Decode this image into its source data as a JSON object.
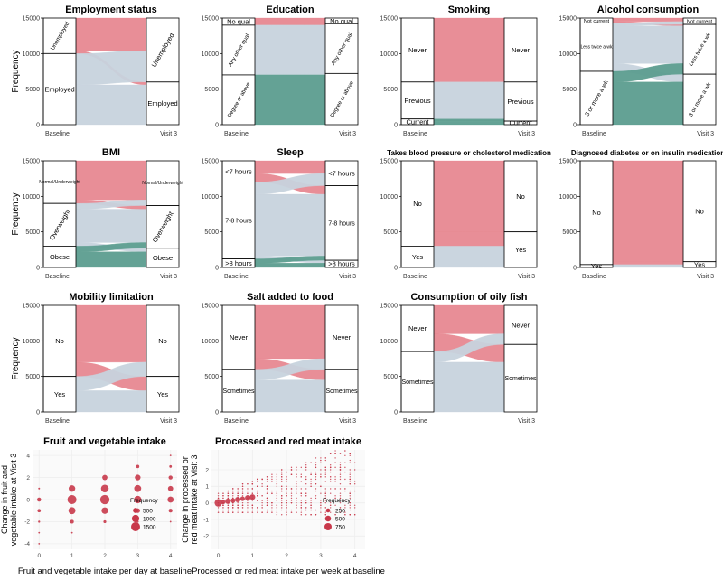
{
  "colors": {
    "red": "#e78891",
    "blue": "#c7d3dd",
    "green": "#5c9d8f",
    "axis": "#000000",
    "point": "#c8384a",
    "grid": "#eeeeee"
  },
  "alluvial": [
    {
      "id": "employment",
      "title": "Employment status",
      "ylabel": "Frequency",
      "xlabels": [
        "Baseline",
        "Visit 3"
      ],
      "ymax": 15000,
      "ticks": [
        0,
        5000,
        10000,
        15000
      ],
      "left": [
        {
          "label": "Unemployed",
          "value": 5000,
          "color": "red"
        },
        {
          "label": "Employed",
          "value": 10000,
          "color": "blue"
        }
      ],
      "right": [
        {
          "label": "Unemployed",
          "value": 9000
        },
        {
          "label": "Employed",
          "value": 6000
        }
      ],
      "flows": [
        {
          "from": 0,
          "to": 0,
          "value": 4600,
          "color": "red"
        },
        {
          "from": 0,
          "to": 1,
          "value": 400,
          "color": "red"
        },
        {
          "from": 1,
          "to": 0,
          "value": 4400,
          "color": "blue"
        },
        {
          "from": 1,
          "to": 1,
          "value": 5600,
          "color": "blue"
        }
      ]
    },
    {
      "id": "education",
      "title": "Education",
      "ylabel": "",
      "xlabels": [
        "Baseline",
        "Visit 3"
      ],
      "ymax": 15000,
      "ticks": [
        0,
        5000,
        10000,
        15000
      ],
      "left": [
        {
          "label": "No qual",
          "value": 1000,
          "color": "red"
        },
        {
          "label": "Any other qual",
          "value": 7000,
          "color": "blue"
        },
        {
          "label": "Degree or above",
          "value": 7000,
          "color": "green"
        }
      ],
      "right": [
        {
          "label": "No qual",
          "value": 800
        },
        {
          "label": "Any other qual",
          "value": 7000
        },
        {
          "label": "Degree or above",
          "value": 7200
        }
      ],
      "flows": [
        {
          "from": 0,
          "to": 0,
          "value": 800,
          "color": "red"
        },
        {
          "from": 0,
          "to": 1,
          "value": 200,
          "color": "red"
        },
        {
          "from": 1,
          "to": 1,
          "value": 6800,
          "color": "blue"
        },
        {
          "from": 1,
          "to": 2,
          "value": 200,
          "color": "blue"
        },
        {
          "from": 2,
          "to": 2,
          "value": 7000,
          "color": "green"
        }
      ]
    },
    {
      "id": "smoking",
      "title": "Smoking",
      "ylabel": "",
      "xlabels": [
        "Baseline",
        "Visit 3"
      ],
      "ymax": 15000,
      "ticks": [
        0,
        5000,
        10000,
        15000
      ],
      "left": [
        {
          "label": "Never",
          "value": 9000,
          "color": "red"
        },
        {
          "label": "Previous",
          "value": 5200,
          "color": "blue"
        },
        {
          "label": "Current",
          "value": 800,
          "color": "green"
        }
      ],
      "right": [
        {
          "label": "Never",
          "value": 9000
        },
        {
          "label": "Previous",
          "value": 5500
        },
        {
          "label": "Current",
          "value": 500
        }
      ],
      "flows": [
        {
          "from": 0,
          "to": 0,
          "value": 9000,
          "color": "red"
        },
        {
          "from": 1,
          "to": 1,
          "value": 5200,
          "color": "blue"
        },
        {
          "from": 2,
          "to": 1,
          "value": 300,
          "color": "green"
        },
        {
          "from": 2,
          "to": 2,
          "value": 500,
          "color": "green"
        }
      ]
    },
    {
      "id": "alcohol",
      "title": "Alcohol consumption",
      "ylabel": "",
      "xlabels": [
        "Baseline",
        "Visit 3"
      ],
      "ymax": 15000,
      "ticks": [
        0,
        5000,
        10000,
        15000
      ],
      "left": [
        {
          "label": "Not current",
          "value": 700,
          "color": "red"
        },
        {
          "label": "Less twice a wk",
          "value": 6800,
          "color": "blue"
        },
        {
          "label": "3 or more a wk",
          "value": 7500,
          "color": "green"
        }
      ],
      "right": [
        {
          "label": "Not current",
          "value": 900
        },
        {
          "label": "Less twice a wk",
          "value": 7000
        },
        {
          "label": "3 or more a wk",
          "value": 7100
        }
      ],
      "flows": [
        {
          "from": 0,
          "to": 0,
          "value": 500,
          "color": "red"
        },
        {
          "from": 0,
          "to": 1,
          "value": 200,
          "color": "red"
        },
        {
          "from": 1,
          "to": 0,
          "value": 400,
          "color": "blue"
        },
        {
          "from": 1,
          "to": 1,
          "value": 5300,
          "color": "blue"
        },
        {
          "from": 1,
          "to": 2,
          "value": 1100,
          "color": "blue"
        },
        {
          "from": 2,
          "to": 1,
          "value": 1500,
          "color": "green"
        },
        {
          "from": 2,
          "to": 2,
          "value": 6000,
          "color": "green"
        }
      ]
    },
    {
      "id": "bmi",
      "title": "BMI",
      "ylabel": "Frequency",
      "xlabels": [
        "Baseline",
        "Visit 3"
      ],
      "ymax": 15000,
      "ticks": [
        0,
        5000,
        10000,
        15000
      ],
      "left": [
        {
          "label": "Normal/Underweight",
          "value": 6000,
          "color": "red"
        },
        {
          "label": "Overweight",
          "value": 6000,
          "color": "blue"
        },
        {
          "label": "Obese",
          "value": 3000,
          "color": "green"
        }
      ],
      "right": [
        {
          "label": "Normal/Underweight",
          "value": 6300
        },
        {
          "label": "Overweight",
          "value": 6000
        },
        {
          "label": "Obese",
          "value": 2700
        }
      ],
      "flows": [
        {
          "from": 0,
          "to": 0,
          "value": 5500,
          "color": "red"
        },
        {
          "from": 0,
          "to": 1,
          "value": 500,
          "color": "red"
        },
        {
          "from": 1,
          "to": 0,
          "value": 800,
          "color": "blue"
        },
        {
          "from": 1,
          "to": 1,
          "value": 4700,
          "color": "blue"
        },
        {
          "from": 1,
          "to": 2,
          "value": 500,
          "color": "blue"
        },
        {
          "from": 2,
          "to": 1,
          "value": 800,
          "color": "green"
        },
        {
          "from": 2,
          "to": 2,
          "value": 2200,
          "color": "green"
        }
      ]
    },
    {
      "id": "sleep",
      "title": "Sleep",
      "ylabel": "",
      "xlabels": [
        "Baseline",
        "Visit 3"
      ],
      "ymax": 15000,
      "ticks": [
        0,
        5000,
        10000,
        15000
      ],
      "left": [
        {
          "label": "<7 hours",
          "value": 3000,
          "color": "red"
        },
        {
          "label": "7-8 hours",
          "value": 10800,
          "color": "blue"
        },
        {
          "label": ">8 hours",
          "value": 1200,
          "color": "green"
        }
      ],
      "right": [
        {
          "label": "<7 hours",
          "value": 3500
        },
        {
          "label": "7-8 hours",
          "value": 10500
        },
        {
          "label": ">8 hours",
          "value": 1000
        }
      ],
      "flows": [
        {
          "from": 0,
          "to": 0,
          "value": 1800,
          "color": "red"
        },
        {
          "from": 0,
          "to": 1,
          "value": 1200,
          "color": "red"
        },
        {
          "from": 1,
          "to": 0,
          "value": 1700,
          "color": "blue"
        },
        {
          "from": 1,
          "to": 1,
          "value": 8700,
          "color": "blue"
        },
        {
          "from": 1,
          "to": 2,
          "value": 400,
          "color": "blue"
        },
        {
          "from": 2,
          "to": 1,
          "value": 600,
          "color": "green"
        },
        {
          "from": 2,
          "to": 2,
          "value": 600,
          "color": "green"
        }
      ]
    },
    {
      "id": "bp",
      "title": "Takes blood pressure or cholesterol medication",
      "ylabel": "",
      "xlabels": [
        "Baseline",
        "Visit 3"
      ],
      "ymax": 15000,
      "ticks": [
        0,
        5000,
        10000,
        15000
      ],
      "left": [
        {
          "label": "No",
          "value": 12000,
          "color": "red"
        },
        {
          "label": "Yes",
          "value": 3000,
          "color": "blue"
        }
      ],
      "right": [
        {
          "label": "No",
          "value": 10000
        },
        {
          "label": "Yes",
          "value": 5000
        }
      ],
      "flows": [
        {
          "from": 0,
          "to": 0,
          "value": 10000,
          "color": "red"
        },
        {
          "from": 0,
          "to": 1,
          "value": 2000,
          "color": "red"
        },
        {
          "from": 1,
          "to": 1,
          "value": 3000,
          "color": "blue"
        }
      ]
    },
    {
      "id": "diabetes",
      "title": "Diagnosed diabetes or on insulin medication",
      "ylabel": "",
      "xlabels": [
        "Baseline",
        "Visit 3"
      ],
      "ymax": 15000,
      "ticks": [
        0,
        5000,
        10000,
        15000
      ],
      "left": [
        {
          "label": "No",
          "value": 14600,
          "color": "red"
        },
        {
          "label": "Yes",
          "value": 400,
          "color": "blue"
        }
      ],
      "right": [
        {
          "label": "No",
          "value": 14200
        },
        {
          "label": "Yes",
          "value": 800
        }
      ],
      "flows": [
        {
          "from": 0,
          "to": 0,
          "value": 14200,
          "color": "red"
        },
        {
          "from": 0,
          "to": 1,
          "value": 400,
          "color": "red"
        },
        {
          "from": 1,
          "to": 1,
          "value": 400,
          "color": "blue"
        }
      ]
    },
    {
      "id": "mobility",
      "title": "Mobility limitation",
      "ylabel": "Frequency",
      "xlabels": [
        "Baseline",
        "Visit 3"
      ],
      "ymax": 15000,
      "ticks": [
        0,
        5000,
        10000,
        15000
      ],
      "left": [
        {
          "label": "No",
          "value": 10000,
          "color": "red"
        },
        {
          "label": "Yes",
          "value": 5000,
          "color": "blue"
        }
      ],
      "right": [
        {
          "label": "No",
          "value": 10000
        },
        {
          "label": "Yes",
          "value": 5000
        }
      ],
      "flows": [
        {
          "from": 0,
          "to": 0,
          "value": 8000,
          "color": "red"
        },
        {
          "from": 0,
          "to": 1,
          "value": 2000,
          "color": "red"
        },
        {
          "from": 1,
          "to": 0,
          "value": 2000,
          "color": "blue"
        },
        {
          "from": 1,
          "to": 1,
          "value": 3000,
          "color": "blue"
        }
      ]
    },
    {
      "id": "salt",
      "title": "Salt added to food",
      "ylabel": "",
      "xlabels": [
        "Baseline",
        "Visit 3"
      ],
      "ymax": 15000,
      "ticks": [
        0,
        5000,
        10000,
        15000
      ],
      "left": [
        {
          "label": "Never",
          "value": 9000,
          "color": "red"
        },
        {
          "label": "Sometimes",
          "value": 6000,
          "color": "blue"
        }
      ],
      "right": [
        {
          "label": "Never",
          "value": 9000
        },
        {
          "label": "Sometimes",
          "value": 6000
        }
      ],
      "flows": [
        {
          "from": 0,
          "to": 0,
          "value": 7500,
          "color": "red"
        },
        {
          "from": 0,
          "to": 1,
          "value": 1500,
          "color": "red"
        },
        {
          "from": 1,
          "to": 0,
          "value": 1500,
          "color": "blue"
        },
        {
          "from": 1,
          "to": 1,
          "value": 4500,
          "color": "blue"
        }
      ]
    },
    {
      "id": "oilyfish",
      "title": "Consumption of oily fish",
      "ylabel": "",
      "xlabels": [
        "Baseline",
        "Visit 3"
      ],
      "ymax": 15000,
      "ticks": [
        0,
        5000,
        10000,
        15000
      ],
      "left": [
        {
          "label": "Never",
          "value": 6500,
          "color": "red"
        },
        {
          "label": "Sometimes",
          "value": 8500,
          "color": "blue"
        }
      ],
      "right": [
        {
          "label": "Never",
          "value": 5500
        },
        {
          "label": "Sometimes",
          "value": 9500
        }
      ],
      "flows": [
        {
          "from": 0,
          "to": 0,
          "value": 4000,
          "color": "red"
        },
        {
          "from": 0,
          "to": 1,
          "value": 2500,
          "color": "red"
        },
        {
          "from": 1,
          "to": 0,
          "value": 1500,
          "color": "blue"
        },
        {
          "from": 1,
          "to": 1,
          "value": 7000,
          "color": "blue"
        }
      ]
    }
  ],
  "chart_data": [
    {
      "type": "scatter",
      "id": "fruitveg",
      "title": "Fruit and vegetable intake",
      "xlabel": "Fruit and vegetable intake per day at baseline",
      "ylabel": "Change in fruit and vegetable intake at Visit 3",
      "xlim": [
        -0.2,
        4.2
      ],
      "ylim": [
        -4.5,
        4.5
      ],
      "xticks": [
        0,
        1,
        2,
        3,
        4
      ],
      "yticks": [
        -4,
        -2,
        0,
        2,
        4
      ],
      "legend": {
        "title": "Frequency",
        "values": [
          500,
          1000,
          1500
        ]
      },
      "points": [
        {
          "x": 0,
          "y": 0,
          "f": 300
        },
        {
          "x": 0,
          "y": -1,
          "f": 200
        },
        {
          "x": 0,
          "y": -2,
          "f": 80
        },
        {
          "x": 0,
          "y": -3,
          "f": 20
        },
        {
          "x": 0,
          "y": -4,
          "f": 5
        },
        {
          "x": 0,
          "y": 1,
          "f": 60
        },
        {
          "x": 1,
          "y": 1,
          "f": 800
        },
        {
          "x": 1,
          "y": 0,
          "f": 1500
        },
        {
          "x": 1,
          "y": -1,
          "f": 900
        },
        {
          "x": 1,
          "y": -2,
          "f": 250
        },
        {
          "x": 1,
          "y": -3,
          "f": 40
        },
        {
          "x": 2,
          "y": 2,
          "f": 500
        },
        {
          "x": 2,
          "y": 1,
          "f": 1100
        },
        {
          "x": 2,
          "y": 0,
          "f": 1600
        },
        {
          "x": 2,
          "y": -1,
          "f": 800
        },
        {
          "x": 2,
          "y": -2,
          "f": 150
        },
        {
          "x": 3,
          "y": 3,
          "f": 200
        },
        {
          "x": 3,
          "y": 2,
          "f": 600
        },
        {
          "x": 3,
          "y": 1,
          "f": 900
        },
        {
          "x": 3,
          "y": 0,
          "f": 1000
        },
        {
          "x": 3,
          "y": -1,
          "f": 400
        },
        {
          "x": 3,
          "y": -2,
          "f": 80
        },
        {
          "x": 4,
          "y": 4,
          "f": 20
        },
        {
          "x": 4,
          "y": 3,
          "f": 120
        },
        {
          "x": 4,
          "y": 2,
          "f": 300
        },
        {
          "x": 4,
          "y": 1,
          "f": 500
        },
        {
          "x": 4,
          "y": 0,
          "f": 700
        },
        {
          "x": 4,
          "y": -1,
          "f": 250
        },
        {
          "x": 4,
          "y": -2,
          "f": 50
        }
      ]
    },
    {
      "type": "scatter",
      "id": "meat",
      "title": "Processed and red meat intake",
      "xlabel": "Processed or red meat intake per week at baseline",
      "ylabel": "Change in processed or red meat intake at Visit 3",
      "xlim": [
        -0.2,
        4.3
      ],
      "ylim": [
        -2.8,
        3.2
      ],
      "xticks": [
        0,
        1,
        2,
        3,
        4
      ],
      "yticks": [
        -2,
        -1,
        0,
        1,
        2
      ],
      "legend": {
        "title": "Frequency",
        "values": [
          250,
          500,
          750
        ]
      },
      "points": [
        {
          "x": 0,
          "y": 0,
          "f": 800
        },
        {
          "x": 0.14,
          "y": 0.05,
          "f": 300
        },
        {
          "x": 0.28,
          "y": 0.1,
          "f": 420
        },
        {
          "x": 0.43,
          "y": 0.14,
          "f": 320
        },
        {
          "x": 0.57,
          "y": 0.2,
          "f": 420
        },
        {
          "x": 0.71,
          "y": 0.25,
          "f": 320
        },
        {
          "x": 0.86,
          "y": 0.3,
          "f": 420
        },
        {
          "x": 1,
          "y": 0.35,
          "f": 450
        }
      ]
    }
  ]
}
